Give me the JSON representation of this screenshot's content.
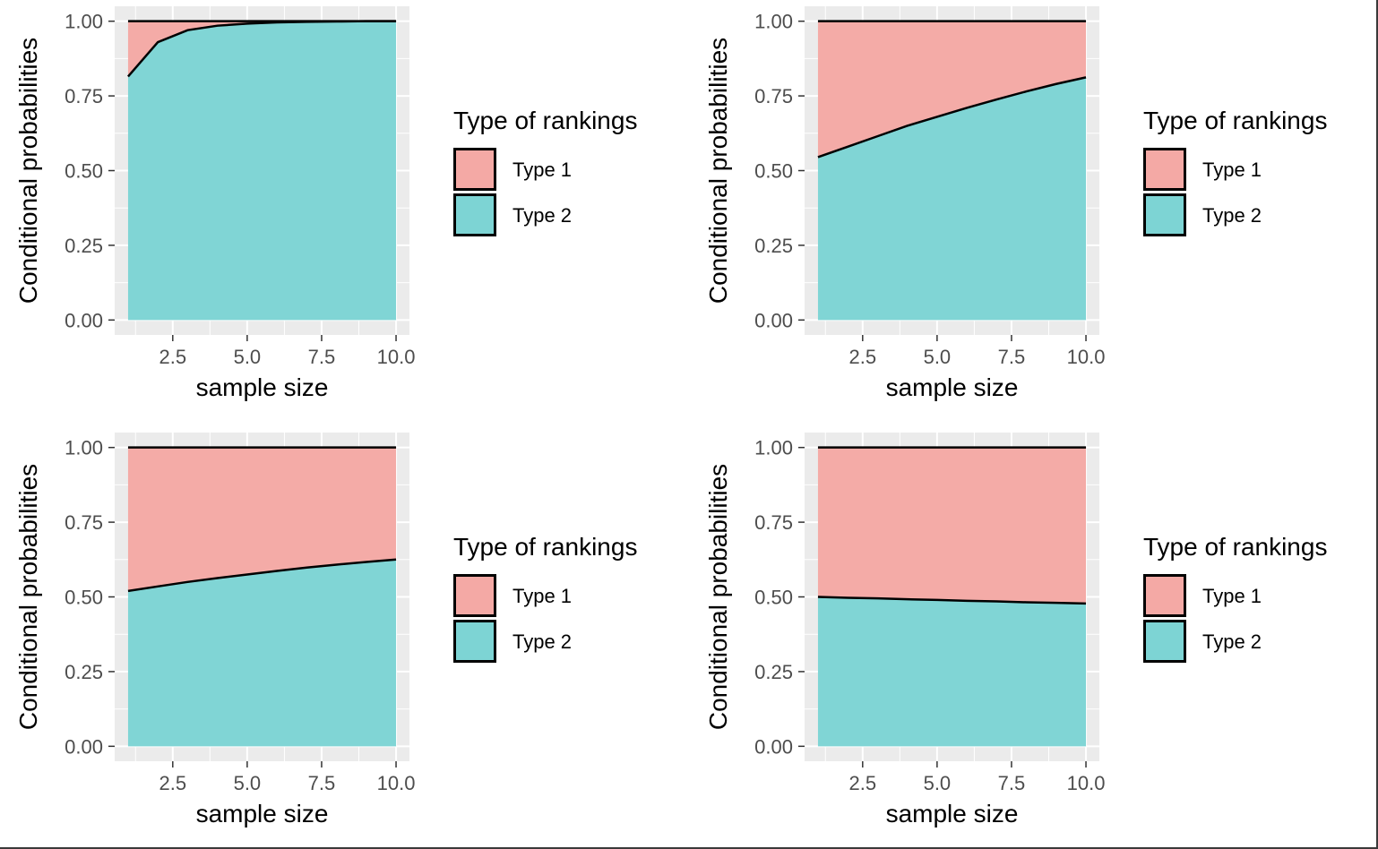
{
  "colors": {
    "panel_bg": "#ebebeb",
    "grid": "#ffffff",
    "type1_fill": "#f4a9a5",
    "type2_fill": "#7dd4d4",
    "line": "#000000"
  },
  "chart_data": [
    {
      "type": "area",
      "stacked": true,
      "xlabel": "sample size",
      "ylabel": "Conditional probabilities",
      "xlim": [
        0.55,
        10.45
      ],
      "ylim": [
        -0.05,
        1.05
      ],
      "xticks": [
        "2.5",
        "5.0",
        "7.5",
        "10.0"
      ],
      "yticks": [
        "0.00",
        "0.25",
        "0.50",
        "0.75",
        "1.00"
      ],
      "grid": true,
      "legend": {
        "title": "Type of rankings",
        "placement": "right",
        "entries": [
          "Type 1",
          "Type 2"
        ]
      },
      "x": [
        1,
        2,
        3,
        4,
        5,
        6,
        7,
        8,
        9,
        10
      ],
      "series": [
        {
          "name": "Type 2",
          "values": [
            0.815,
            0.93,
            0.97,
            0.985,
            0.992,
            0.996,
            0.998,
            0.999,
            1.0,
            1.0
          ]
        },
        {
          "name": "Type 1",
          "values": [
            0.185,
            0.07,
            0.03,
            0.015,
            0.008,
            0.004,
            0.002,
            0.001,
            0.0,
            0.0
          ]
        }
      ]
    },
    {
      "type": "area",
      "stacked": true,
      "xlabel": "sample size",
      "ylabel": "Conditional probabilities",
      "xlim": [
        0.55,
        10.45
      ],
      "ylim": [
        -0.05,
        1.05
      ],
      "xticks": [
        "2.5",
        "5.0",
        "7.5",
        "10.0"
      ],
      "yticks": [
        "0.00",
        "0.25",
        "0.50",
        "0.75",
        "1.00"
      ],
      "grid": true,
      "legend": {
        "title": "Type of rankings",
        "placement": "right",
        "entries": [
          "Type 1",
          "Type 2"
        ]
      },
      "x": [
        1,
        2,
        3,
        4,
        5,
        6,
        7,
        8,
        9,
        10
      ],
      "series": [
        {
          "name": "Type 2",
          "values": [
            0.545,
            0.58,
            0.615,
            0.65,
            0.68,
            0.71,
            0.738,
            0.765,
            0.79,
            0.812
          ]
        },
        {
          "name": "Type 1",
          "values": [
            0.455,
            0.42,
            0.385,
            0.35,
            0.32,
            0.29,
            0.262,
            0.235,
            0.21,
            0.188
          ]
        }
      ]
    },
    {
      "type": "area",
      "stacked": true,
      "xlabel": "sample size",
      "ylabel": "Conditional probabilities",
      "xlim": [
        0.55,
        10.45
      ],
      "ylim": [
        -0.05,
        1.05
      ],
      "xticks": [
        "2.5",
        "5.0",
        "7.5",
        "10.0"
      ],
      "yticks": [
        "0.00",
        "0.25",
        "0.50",
        "0.75",
        "1.00"
      ],
      "grid": true,
      "legend": {
        "title": "Type of rankings",
        "placement": "right",
        "entries": [
          "Type 1",
          "Type 2"
        ]
      },
      "x": [
        1,
        2,
        3,
        4,
        5,
        6,
        7,
        8,
        9,
        10
      ],
      "series": [
        {
          "name": "Type 2",
          "values": [
            0.52,
            0.535,
            0.55,
            0.563,
            0.575,
            0.587,
            0.598,
            0.608,
            0.617,
            0.625
          ]
        },
        {
          "name": "Type 1",
          "values": [
            0.48,
            0.465,
            0.45,
            0.437,
            0.425,
            0.413,
            0.402,
            0.392,
            0.383,
            0.375
          ]
        }
      ]
    },
    {
      "type": "area",
      "stacked": true,
      "xlabel": "sample size",
      "ylabel": "Conditional probabilities",
      "xlim": [
        0.55,
        10.45
      ],
      "ylim": [
        -0.05,
        1.05
      ],
      "xticks": [
        "2.5",
        "5.0",
        "7.5",
        "10.0"
      ],
      "yticks": [
        "0.00",
        "0.25",
        "0.50",
        "0.75",
        "1.00"
      ],
      "grid": true,
      "legend": {
        "title": "Type of rankings",
        "placement": "right",
        "entries": [
          "Type 1",
          "Type 2"
        ]
      },
      "x": [
        1,
        2,
        3,
        4,
        5,
        6,
        7,
        8,
        9,
        10
      ],
      "series": [
        {
          "name": "Type 2",
          "values": [
            0.5,
            0.497,
            0.495,
            0.492,
            0.49,
            0.487,
            0.485,
            0.482,
            0.48,
            0.478
          ]
        },
        {
          "name": "Type 1",
          "values": [
            0.5,
            0.503,
            0.505,
            0.508,
            0.51,
            0.513,
            0.515,
            0.518,
            0.52,
            0.522
          ]
        }
      ]
    }
  ]
}
